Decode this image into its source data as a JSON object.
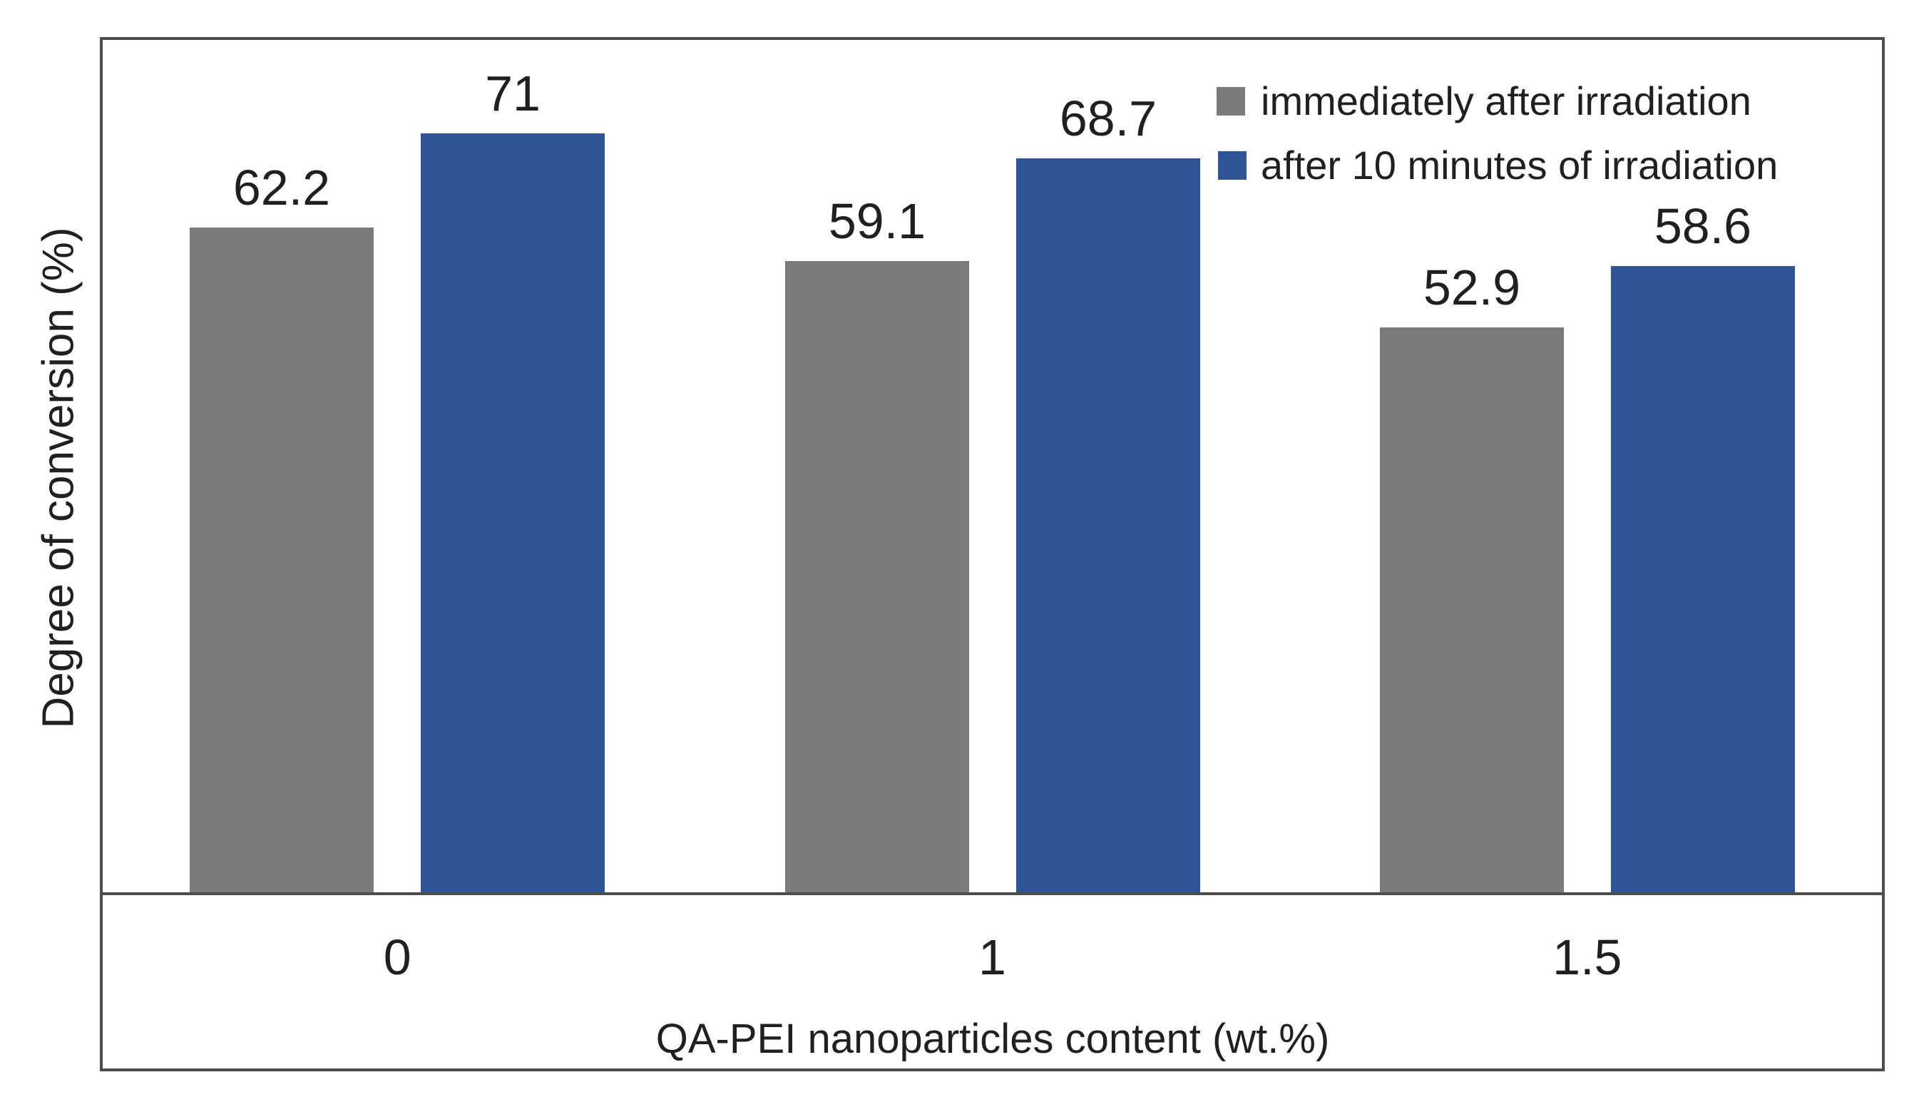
{
  "figure": {
    "background": "#FFFFFF"
  },
  "colors": {
    "axis_and_border": "#4D4D4D",
    "text": "#202020",
    "series_gray": "#7B7B7B",
    "series_blue": "#2F5596"
  },
  "chart_data": {
    "type": "bar",
    "categories": [
      "0",
      "1",
      "1.5"
    ],
    "series": [
      {
        "name": "immediately after irradiation",
        "color": "#7B7B7B",
        "values": [
          62.2,
          59.1,
          52.9
        ]
      },
      {
        "name": "after 10 minutes of irradiation",
        "color": "#2F5596",
        "values": [
          71,
          68.7,
          58.6
        ]
      }
    ],
    "title": "",
    "xlabel": "QA-PEI nanoparticles content (wt.%)",
    "ylabel": "Degree of conversion (%)",
    "ylim": [
      0,
      80
    ],
    "grid": false,
    "y_tick_labels_visible": false,
    "value_labels": true,
    "legend_position": "top-right"
  }
}
